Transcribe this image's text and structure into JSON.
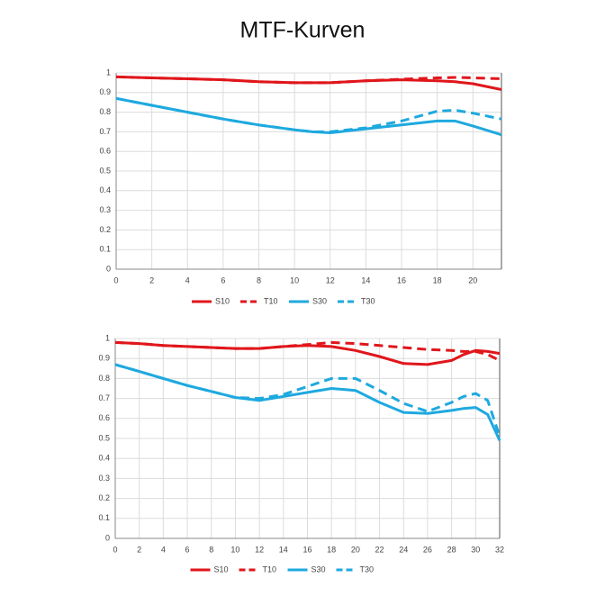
{
  "title": "MTF-Kurven",
  "chart_data": [
    {
      "type": "line",
      "x": [
        0,
        2,
        4,
        6,
        8,
        10,
        11,
        12,
        14,
        16,
        18,
        19,
        20,
        21.6
      ],
      "xlim": [
        0,
        21.6
      ],
      "xticks": [
        0,
        2,
        4,
        6,
        8,
        10,
        12,
        14,
        16,
        18,
        20
      ],
      "ylim": [
        0,
        1
      ],
      "yticks": [
        0,
        0.1,
        0.2,
        0.3,
        0.4,
        0.5,
        0.6,
        0.7,
        0.8,
        0.9,
        1
      ],
      "grid": true,
      "legend": "bottom",
      "series": [
        {
          "name": "S10",
          "color": "#e0161b",
          "linestyle": "solid",
          "values": [
            0.98,
            0.975,
            0.97,
            0.965,
            0.955,
            0.95,
            0.95,
            0.95,
            0.96,
            0.965,
            0.96,
            0.955,
            0.945,
            0.915
          ]
        },
        {
          "name": "T10",
          "color": "#e0161b",
          "linestyle": "dashed",
          "values": [
            0.98,
            0.975,
            0.97,
            0.965,
            0.955,
            0.95,
            0.95,
            0.95,
            0.96,
            0.968,
            0.975,
            0.977,
            0.975,
            0.97
          ]
        },
        {
          "name": "S30",
          "color": "#1ea9df",
          "linestyle": "solid",
          "values": [
            0.87,
            0.835,
            0.8,
            0.765,
            0.735,
            0.71,
            0.7,
            0.695,
            0.715,
            0.735,
            0.755,
            0.755,
            0.73,
            0.685
          ]
        },
        {
          "name": "T30",
          "color": "#1ea9df",
          "linestyle": "dashed",
          "values": [
            0.87,
            0.835,
            0.8,
            0.765,
            0.735,
            0.71,
            0.7,
            0.7,
            0.72,
            0.755,
            0.805,
            0.81,
            0.795,
            0.765
          ]
        }
      ]
    },
    {
      "type": "line",
      "x": [
        0,
        2,
        4,
        6,
        8,
        10,
        12,
        14,
        16,
        18,
        20,
        22,
        24,
        26,
        28,
        29,
        30,
        31,
        32
      ],
      "xlim": [
        0,
        32
      ],
      "xticks": [
        0,
        2,
        4,
        6,
        8,
        10,
        12,
        14,
        16,
        18,
        20,
        22,
        24,
        26,
        28,
        30,
        32
      ],
      "ylim": [
        0,
        1
      ],
      "yticks": [
        0,
        0.1,
        0.2,
        0.3,
        0.4,
        0.5,
        0.6,
        0.7,
        0.8,
        0.9,
        1
      ],
      "grid": true,
      "legend": "bottom",
      "series": [
        {
          "name": "S10",
          "color": "#e0161b",
          "linestyle": "solid",
          "values": [
            0.98,
            0.975,
            0.965,
            0.96,
            0.955,
            0.95,
            0.95,
            0.96,
            0.965,
            0.96,
            0.94,
            0.91,
            0.875,
            0.87,
            0.89,
            0.92,
            0.94,
            0.935,
            0.925
          ]
        },
        {
          "name": "T10",
          "color": "#e0161b",
          "linestyle": "dashed",
          "values": [
            0.98,
            0.975,
            0.965,
            0.96,
            0.955,
            0.95,
            0.95,
            0.96,
            0.97,
            0.98,
            0.975,
            0.965,
            0.955,
            0.945,
            0.94,
            0.935,
            0.935,
            0.92,
            0.89
          ]
        },
        {
          "name": "S30",
          "color": "#1ea9df",
          "linestyle": "solid",
          "values": [
            0.87,
            0.835,
            0.8,
            0.765,
            0.735,
            0.705,
            0.69,
            0.71,
            0.73,
            0.75,
            0.74,
            0.68,
            0.63,
            0.625,
            0.64,
            0.65,
            0.655,
            0.62,
            0.49
          ]
        },
        {
          "name": "T30",
          "color": "#1ea9df",
          "linestyle": "dashed",
          "values": [
            0.87,
            0.835,
            0.8,
            0.765,
            0.735,
            0.705,
            0.7,
            0.72,
            0.76,
            0.8,
            0.8,
            0.74,
            0.675,
            0.635,
            0.68,
            0.71,
            0.725,
            0.69,
            0.51
          ]
        }
      ]
    }
  ]
}
